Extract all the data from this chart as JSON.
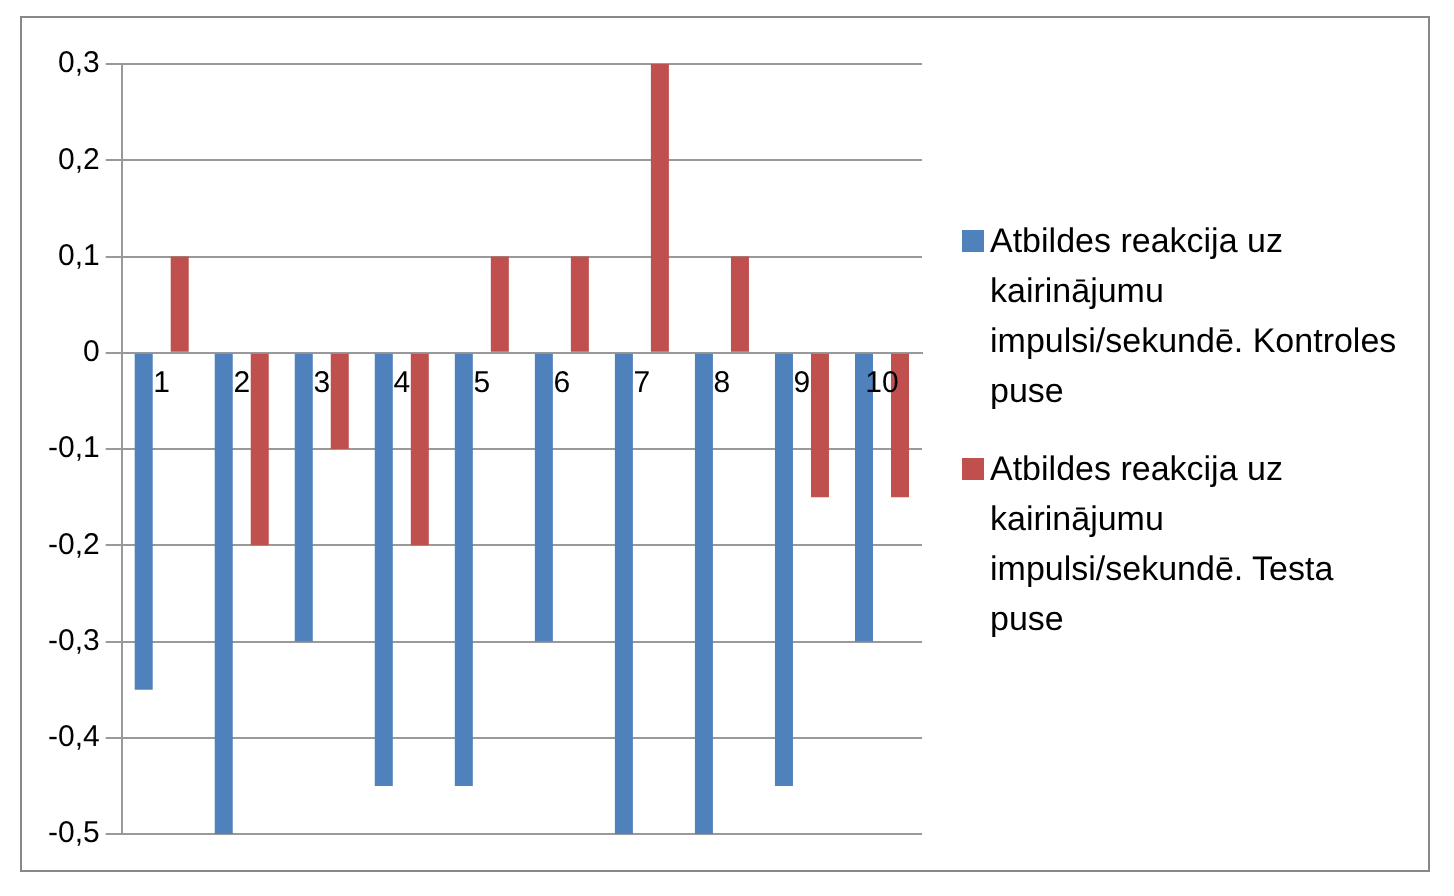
{
  "chart_data": {
    "type": "bar",
    "categories": [
      "1",
      "2",
      "3",
      "4",
      "5",
      "6",
      "7",
      "8",
      "9",
      "10"
    ],
    "series": [
      {
        "name": "Atbildes reakcija uz kairinājumu impulsi/sekundē. Kontroles puse",
        "color": "#4f81bd",
        "values": [
          -0.35,
          -0.5,
          -0.3,
          -0.45,
          -0.45,
          -0.3,
          -0.5,
          -0.5,
          -0.45,
          -0.3
        ]
      },
      {
        "name": "Atbildes reakcija uz kairinājumu impulsi/sekundē. Testa puse",
        "color": "#c0504d",
        "values": [
          0.1,
          -0.2,
          -0.1,
          -0.2,
          0.1,
          0.1,
          0.3,
          0.1,
          -0.15,
          -0.15
        ]
      }
    ],
    "ylim": [
      -0.5,
      0.3
    ],
    "yticks": [
      {
        "value": -0.5,
        "label": "-0,5"
      },
      {
        "value": -0.4,
        "label": "-0,4"
      },
      {
        "value": -0.3,
        "label": "-0,3"
      },
      {
        "value": -0.2,
        "label": "-0,2"
      },
      {
        "value": -0.1,
        "label": "-0,1"
      },
      {
        "value": 0,
        "label": "0"
      },
      {
        "value": 0.1,
        "label": "0,1"
      },
      {
        "value": 0.2,
        "label": "0,2"
      },
      {
        "value": 0.3,
        "label": "0,3"
      }
    ],
    "grid": "y",
    "legend": "right"
  }
}
